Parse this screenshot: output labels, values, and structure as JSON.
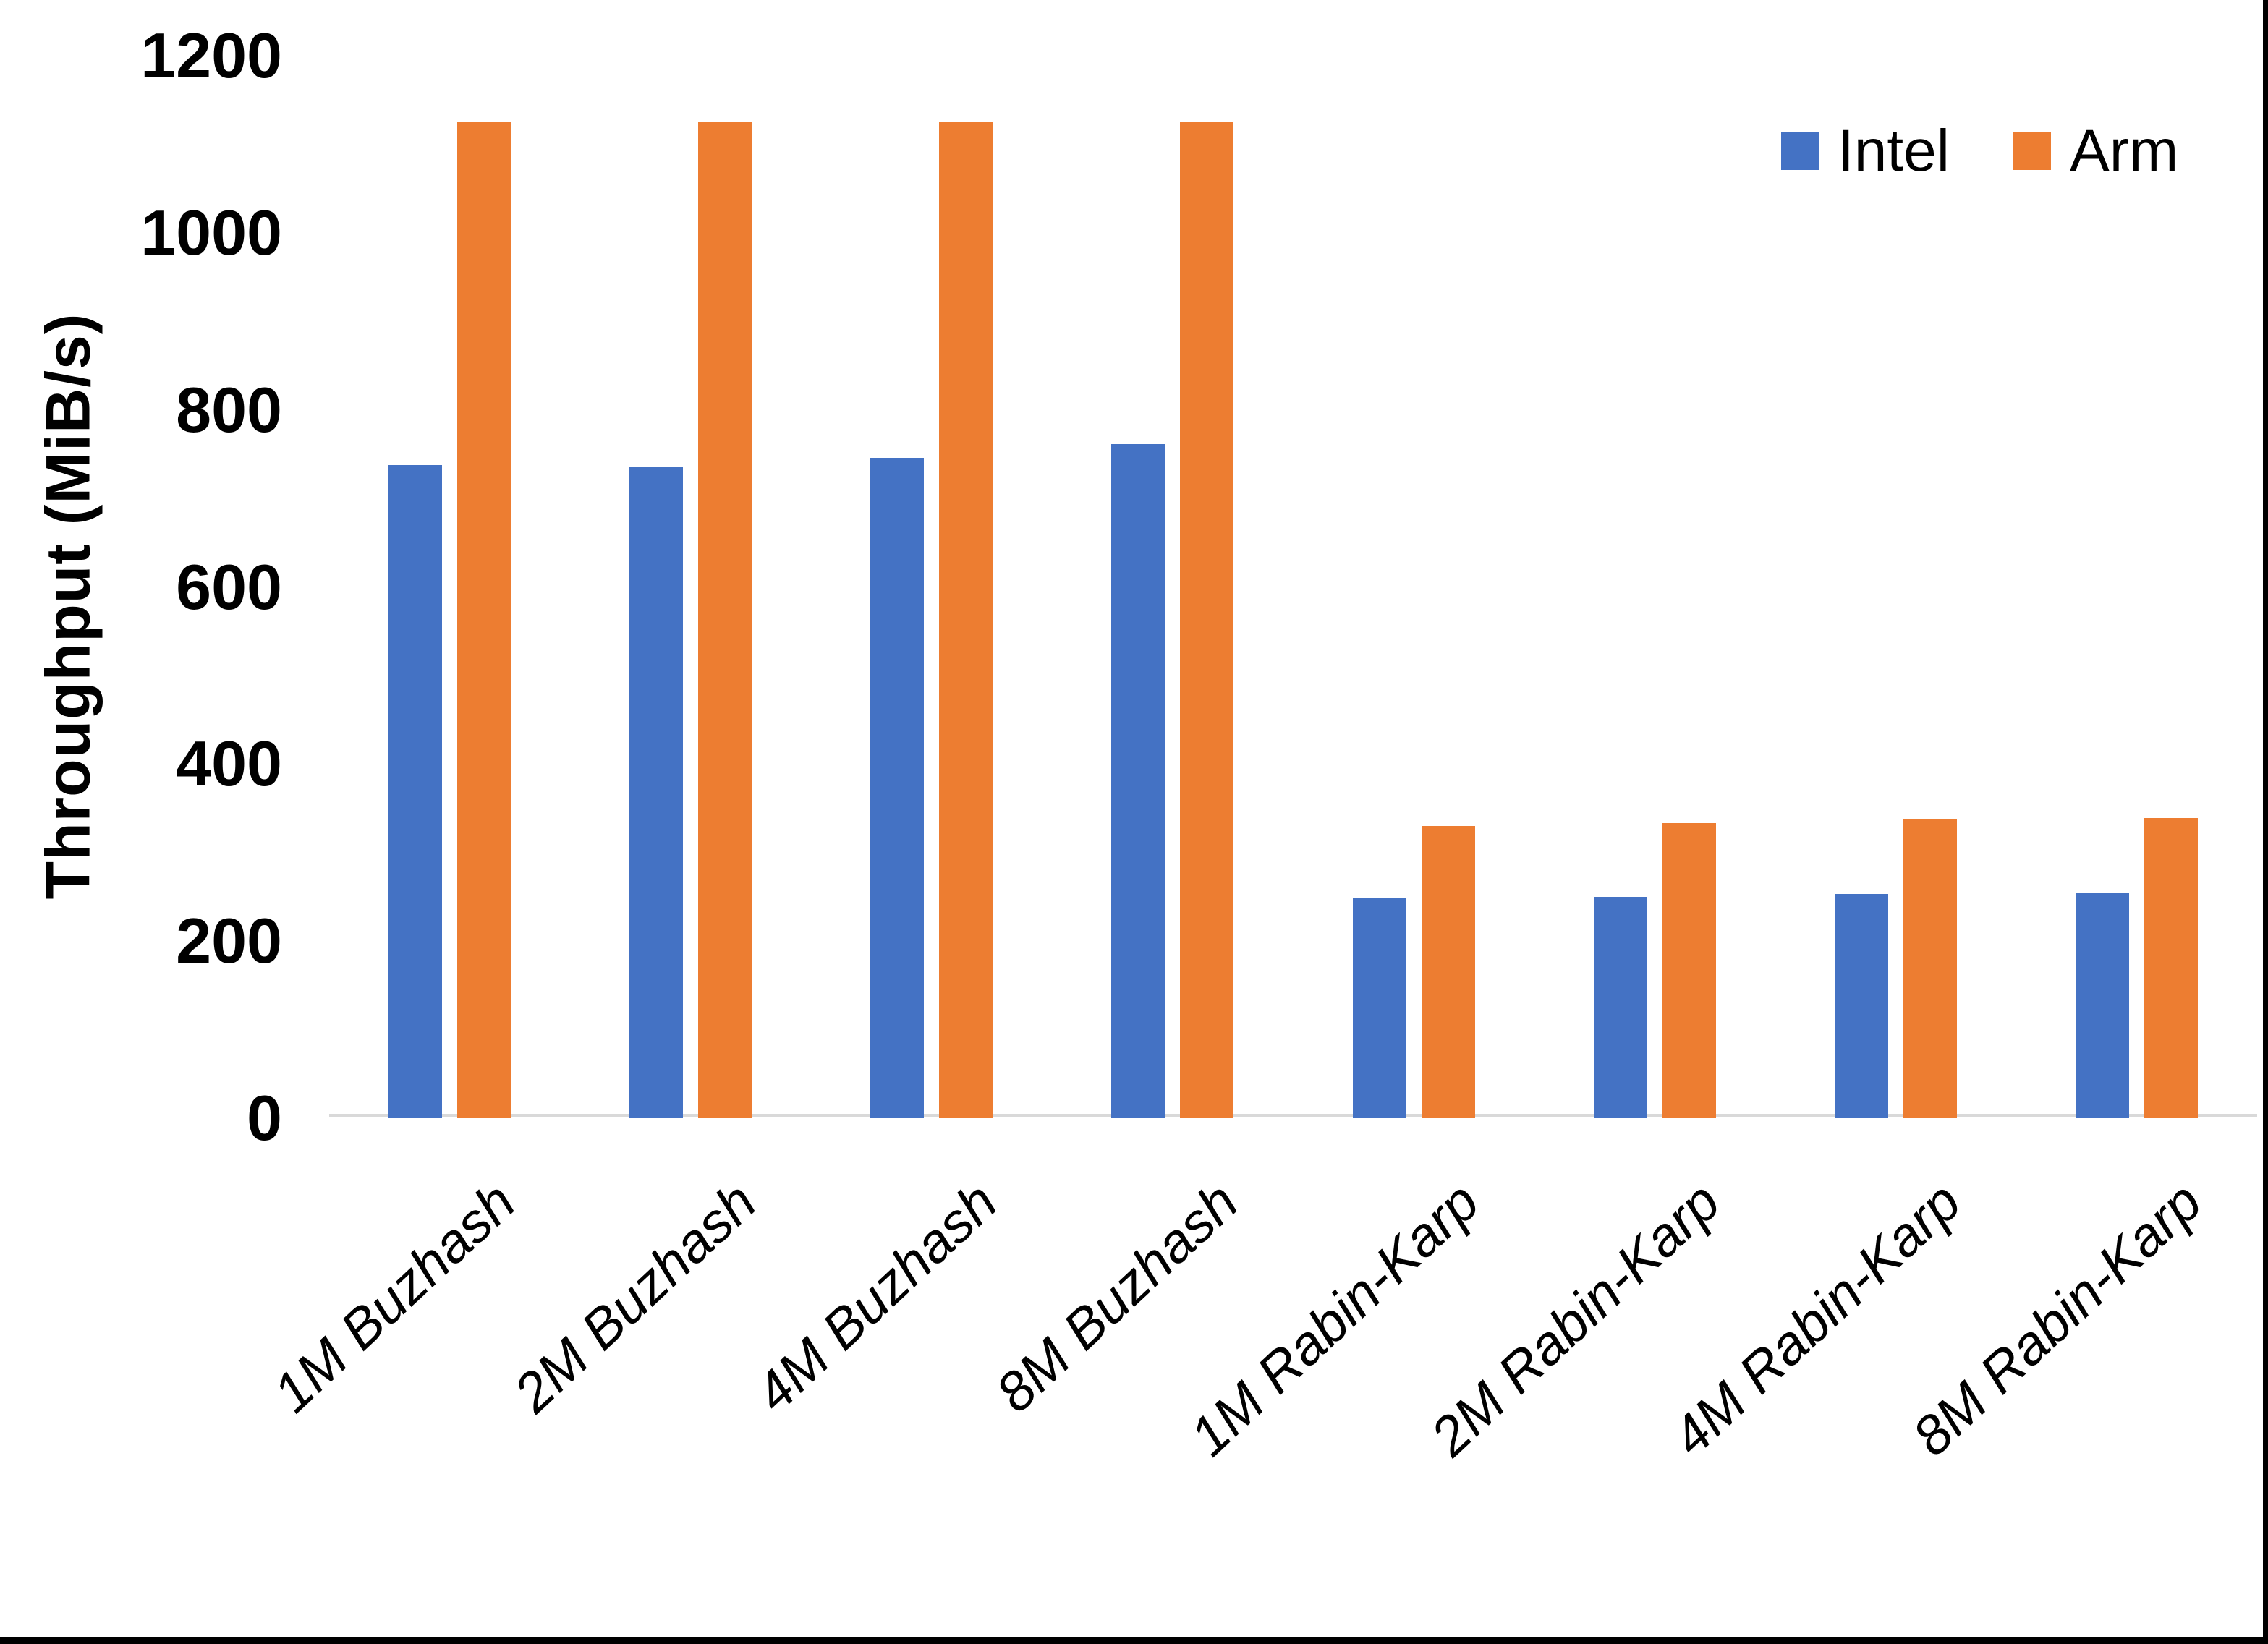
{
  "chart_data": {
    "type": "bar",
    "title": "",
    "xlabel": "",
    "ylabel": "Throughput (MiB/s)",
    "ylim": [
      0,
      1200
    ],
    "yticks": [
      0,
      200,
      400,
      600,
      800,
      1000,
      1200
    ],
    "grid": false,
    "legend_position": "top-right",
    "categories": [
      "1M Buzhash",
      "2M Buzhash",
      "4M Buzhash",
      "8M Buzhash",
      "1M Rabin-Karp",
      "2M Rabin-Karp",
      "4M Rabin-Karp",
      "8M Rabin-Karp"
    ],
    "series": [
      {
        "name": "Intel",
        "color": "#4472C4",
        "values": [
          738,
          736,
          746,
          761,
          249,
          250,
          253,
          254
        ]
      },
      {
        "name": "Arm",
        "color": "#ED7D31",
        "values": [
          1125,
          1125,
          1125,
          1125,
          330,
          333,
          337,
          339
        ]
      }
    ]
  },
  "colors": {
    "axis_line": "#D9D9D9",
    "text": "#000000",
    "frame": "#000000"
  }
}
